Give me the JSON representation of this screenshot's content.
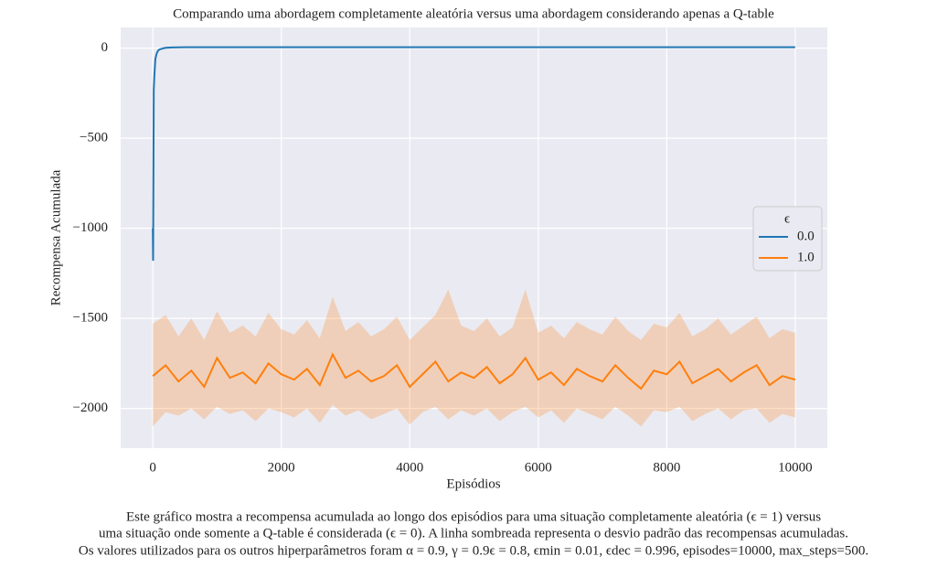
{
  "chart_data": {
    "type": "line",
    "title": "Comparando uma abordagem completamente aleatória versus uma abordagem considerando apenas a Q-table",
    "x_label": "Episódios",
    "y_label": "Recompensa Acumulada",
    "legend_title": "ϵ",
    "legend": "center right",
    "grid": true,
    "xlim": [
      -500,
      10500
    ],
    "xticks": [
      0,
      2000,
      4000,
      6000,
      8000,
      10000
    ],
    "ylim": [
      -2220,
      115
    ],
    "yticks": [
      0,
      {
        "value": -500,
        "label": "−500"
      },
      {
        "value": -1000,
        "label": "−1000"
      },
      {
        "value": -1500,
        "label": "−1500"
      },
      {
        "value": -2000,
        "label": "−2000"
      }
    ],
    "series": [
      {
        "name": "0.0",
        "color": "#1f77b4",
        "x": [
          0,
          5,
          15,
          25,
          40,
          60,
          80,
          100,
          150,
          200,
          300,
          500,
          1000,
          2000,
          4000,
          6000,
          8000,
          10000
        ],
        "values": [
          -1000,
          -1180,
          -230,
          -150,
          -60,
          -30,
          -15,
          -8,
          -2,
          2,
          4,
          5,
          5,
          5,
          5,
          5,
          5,
          5
        ]
      },
      {
        "name": "1.0",
        "color": "#ff7f0e",
        "x": [
          0,
          200,
          400,
          600,
          800,
          1000,
          1200,
          1400,
          1600,
          1800,
          2000,
          2200,
          2400,
          2600,
          2800,
          3000,
          3200,
          3400,
          3600,
          3800,
          4000,
          4200,
          4400,
          4600,
          4800,
          5000,
          5200,
          5400,
          5600,
          5800,
          6000,
          6200,
          6400,
          6600,
          6800,
          7000,
          7200,
          7400,
          7600,
          7800,
          8000,
          8200,
          8400,
          8600,
          8800,
          9000,
          9200,
          9400,
          9600,
          9800,
          10000
        ],
        "values": [
          -1820,
          -1760,
          -1850,
          -1790,
          -1880,
          -1720,
          -1830,
          -1800,
          -1860,
          -1750,
          -1810,
          -1840,
          -1780,
          -1870,
          -1700,
          -1830,
          -1790,
          -1850,
          -1820,
          -1760,
          -1880,
          -1810,
          -1740,
          -1850,
          -1800,
          -1830,
          -1770,
          -1860,
          -1810,
          -1720,
          -1840,
          -1800,
          -1870,
          -1780,
          -1820,
          -1850,
          -1760,
          -1830,
          -1890,
          -1790,
          -1810,
          -1740,
          -1860,
          -1820,
          -1780,
          -1850,
          -1800,
          -1760,
          -1870,
          -1820,
          -1840
        ],
        "lower": [
          -2100,
          -2020,
          -2040,
          -2000,
          -2060,
          -1990,
          -2030,
          -2010,
          -2070,
          -2000,
          -2020,
          -2050,
          -2000,
          -2080,
          -1980,
          -2040,
          -2010,
          -2060,
          -2030,
          -2000,
          -2090,
          -2020,
          -1990,
          -2060,
          -2010,
          -2040,
          -2000,
          -2070,
          -2020,
          -1990,
          -2050,
          -2010,
          -2080,
          -2000,
          -2030,
          -2060,
          -1990,
          -2040,
          -2100,
          -2010,
          -2020,
          -1990,
          -2070,
          -2030,
          -2000,
          -2060,
          -2010,
          -2000,
          -2080,
          -2030,
          -2050
        ],
        "upper": [
          -1530,
          -1480,
          -1600,
          -1500,
          -1620,
          -1460,
          -1580,
          -1540,
          -1600,
          -1470,
          -1560,
          -1590,
          -1510,
          -1610,
          -1380,
          -1570,
          -1520,
          -1600,
          -1560,
          -1490,
          -1620,
          -1550,
          -1480,
          -1340,
          -1540,
          -1570,
          -1500,
          -1600,
          -1550,
          -1340,
          -1580,
          -1540,
          -1610,
          -1520,
          -1560,
          -1590,
          -1490,
          -1570,
          -1620,
          -1530,
          -1550,
          -1470,
          -1600,
          -1560,
          -1500,
          -1590,
          -1540,
          -1490,
          -1610,
          -1560,
          -1580
        ]
      }
    ],
    "caption": [
      "Este gráfico mostra a recompensa acumulada ao longo dos episódios para uma situação completamente aleatória (ϵ = 1) versus",
      "uma situação onde somente a Q-table é considerada (ϵ = 0). A linha sombreada representa o desvio padrão das recompensas acumuladas.",
      "Os valores utilizados para os outros hiperparâmetros foram α = 0.9, γ = 0.9ϵ = 0.8, ϵmin = 0.01, ϵdec = 0.996, episodes=10000, max_steps=500."
    ]
  }
}
